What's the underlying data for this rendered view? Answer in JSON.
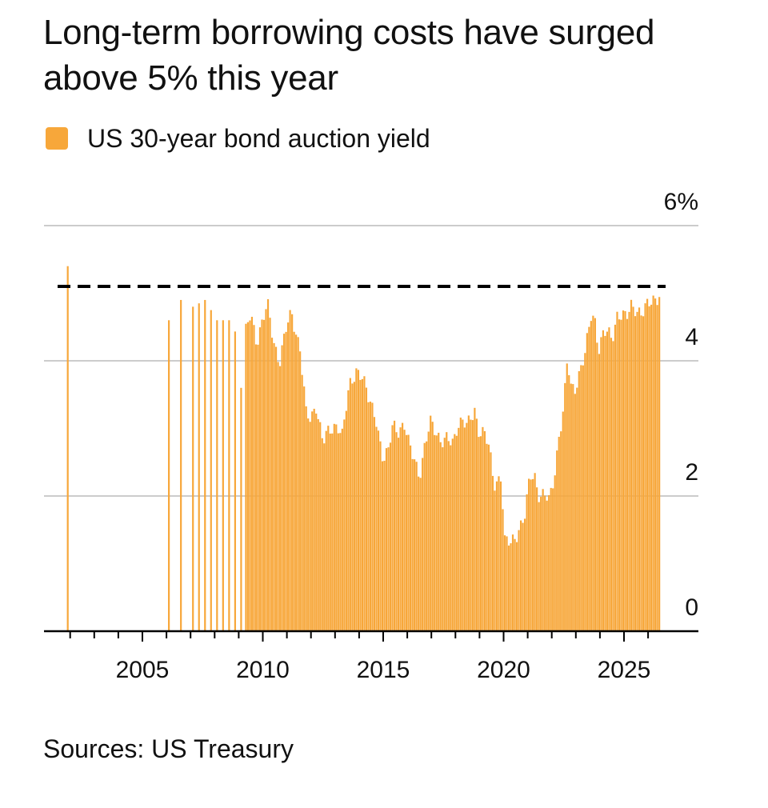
{
  "title": "Long-term borrowing costs have surged above 5% this year",
  "source": "Sources: US Treasury",
  "chart_data": {
    "type": "bar",
    "legend": "US 30-year bond auction yield",
    "y_axis": {
      "ylim": [
        0,
        6
      ],
      "ticks": [
        "0",
        "2",
        "4",
        "6%"
      ],
      "side": "right",
      "grid": true
    },
    "x_axis": {
      "xlim": [
        2001.3,
        2026.8
      ],
      "tick_labels": [
        "2005",
        "2010",
        "2015",
        "2020",
        "2025"
      ]
    },
    "reference_line": {
      "value": 5.1,
      "style": "dashed"
    },
    "colors": {
      "bar": "#f7a73a",
      "grid": "#cccccc",
      "axis": "#000000",
      "reference": "#000000"
    },
    "anchors": [
      [
        2001.9,
        5.4
      ],
      [
        2006.1,
        4.6
      ],
      [
        2006.6,
        4.9
      ],
      [
        2007.1,
        4.8
      ],
      [
        2007.6,
        4.9
      ],
      [
        2008.1,
        4.6
      ],
      [
        2008.6,
        4.6
      ],
      [
        2008.9,
        4.4
      ],
      [
        2009.1,
        3.6
      ],
      [
        2009.3,
        4.4
      ],
      [
        2009.5,
        4.7
      ],
      [
        2009.75,
        4.3
      ],
      [
        2010.0,
        4.6
      ],
      [
        2010.2,
        4.8
      ],
      [
        2010.45,
        4.3
      ],
      [
        2010.7,
        4.0
      ],
      [
        2011.0,
        4.5
      ],
      [
        2011.2,
        4.7
      ],
      [
        2011.55,
        4.2
      ],
      [
        2011.8,
        3.2
      ],
      [
        2012.0,
        3.1
      ],
      [
        2012.2,
        3.4
      ],
      [
        2012.5,
        2.8
      ],
      [
        2012.7,
        2.9
      ],
      [
        2012.9,
        3.0
      ],
      [
        2013.1,
        3.1
      ],
      [
        2013.3,
        2.9
      ],
      [
        2013.6,
        3.6
      ],
      [
        2013.9,
        3.9
      ],
      [
        2014.1,
        3.8
      ],
      [
        2014.4,
        3.4
      ],
      [
        2014.7,
        3.2
      ],
      [
        2015.0,
        2.5
      ],
      [
        2015.2,
        2.6
      ],
      [
        2015.4,
        3.1
      ],
      [
        2015.6,
        3.0
      ],
      [
        2015.9,
        3.0
      ],
      [
        2016.1,
        2.7
      ],
      [
        2016.3,
        2.6
      ],
      [
        2016.5,
        2.3
      ],
      [
        2016.8,
        2.8
      ],
      [
        2016.95,
        3.1
      ],
      [
        2017.2,
        3.0
      ],
      [
        2017.4,
        2.8
      ],
      [
        2017.7,
        2.8
      ],
      [
        2017.9,
        2.8
      ],
      [
        2018.1,
        3.1
      ],
      [
        2018.3,
        3.1
      ],
      [
        2018.5,
        3.0
      ],
      [
        2018.8,
        3.3
      ],
      [
        2018.95,
        3.0
      ],
      [
        2019.2,
        2.9
      ],
      [
        2019.4,
        2.7
      ],
      [
        2019.6,
        2.2
      ],
      [
        2019.9,
        2.3
      ],
      [
        2020.05,
        1.3
      ],
      [
        2020.3,
        1.3
      ],
      [
        2020.6,
        1.5
      ],
      [
        2020.9,
        1.7
      ],
      [
        2021.1,
        2.3
      ],
      [
        2021.3,
        2.3
      ],
      [
        2021.5,
        2.0
      ],
      [
        2021.7,
        2.0
      ],
      [
        2021.9,
        1.9
      ],
      [
        2022.1,
        2.3
      ],
      [
        2022.3,
        2.9
      ],
      [
        2022.5,
        3.3
      ],
      [
        2022.65,
        4.0
      ],
      [
        2022.8,
        3.6
      ],
      [
        2022.95,
        3.6
      ],
      [
        2023.2,
        3.9
      ],
      [
        2023.4,
        4.1
      ],
      [
        2023.65,
        4.7
      ],
      [
        2023.8,
        4.6
      ],
      [
        2023.95,
        4.2
      ],
      [
        2024.15,
        4.4
      ],
      [
        2024.3,
        4.4
      ],
      [
        2024.5,
        4.3
      ],
      [
        2024.7,
        4.7
      ],
      [
        2024.9,
        4.7
      ],
      [
        2025.1,
        4.6
      ],
      [
        2025.3,
        4.8
      ],
      [
        2025.5,
        4.8
      ],
      [
        2025.75,
        4.7
      ],
      [
        2026.0,
        4.8
      ],
      [
        2026.2,
        4.9
      ],
      [
        2026.45,
        5.0
      ]
    ]
  }
}
